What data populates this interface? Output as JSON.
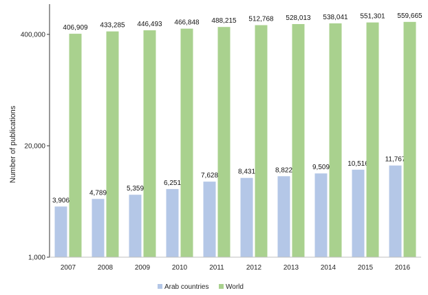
{
  "chart_data": {
    "type": "bar",
    "categories": [
      "2007",
      "2008",
      "2009",
      "2010",
      "2011",
      "2012",
      "2013",
      "2014",
      "2015",
      "2016"
    ],
    "series": [
      {
        "name": "Arab countries",
        "color": "#b4c7e7",
        "values": [
          3906,
          4789,
          5359,
          6251,
          7628,
          8431,
          8822,
          9509,
          10516,
          11767
        ],
        "labels": [
          "3,906",
          "4,789",
          "5,359",
          "6,251",
          "7,628",
          "8,431",
          "8,822",
          "9,509",
          "10,516",
          "11,767"
        ]
      },
      {
        "name": "World",
        "color": "#a9d18e",
        "values": [
          406909,
          433285,
          446493,
          466848,
          488215,
          512768,
          528013,
          538041,
          551301,
          559665
        ],
        "labels": [
          "406,909",
          "433,285",
          "446,493",
          "466,848",
          "488,215",
          "512,768",
          "528,013",
          "538,041",
          "551,301",
          "559,665"
        ]
      }
    ],
    "ylabel": "Number of publications",
    "xlabel": "",
    "yscale": "log",
    "ylim": [
      1000,
      1000000
    ],
    "yticks": [
      1000,
      20000,
      400000
    ],
    "ytick_labels": [
      "1,000",
      "20,000",
      "400,000"
    ],
    "legend_position": "bottom",
    "grid": false
  }
}
